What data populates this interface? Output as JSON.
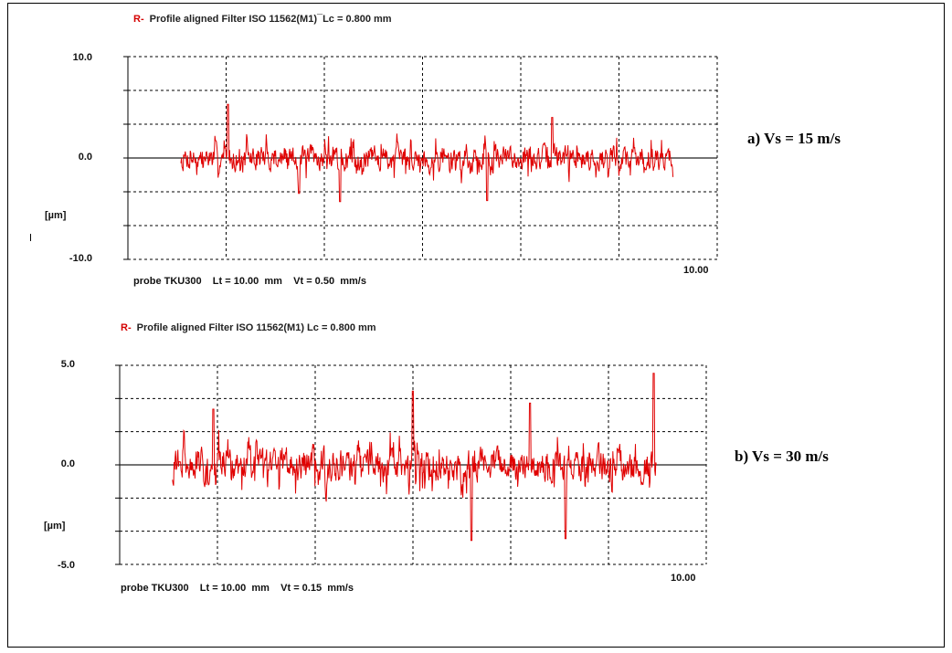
{
  "colors": {
    "profile": "#e00000",
    "grid": "#000000",
    "label_prefix": "#d40000"
  },
  "chart_data": [
    {
      "type": "line",
      "title_prefix": "R-",
      "title": "Profile aligned Filter ISO 11562(M1)¯Lc = 0.800 mm",
      "ylabel": "[µm]",
      "y_ticks": [
        "10.0",
        "0.0",
        "-10.0"
      ],
      "ylim": [
        -10,
        10
      ],
      "x_end_label": "10.00",
      "xlim": [
        0,
        10
      ],
      "grid": true,
      "footer": "probe TKU300    Lt = 10.00  mm    Vt = 0.50  mm/s",
      "annotation": "a) Vs = 15 m/s",
      "series": [
        {
          "data_start": 0.9,
          "data_end": 9.25,
          "seed": 7,
          "noise_amplitude": 1.3,
          "extremes": [
            [
              1.7,
              5.3
            ],
            [
              3.6,
              -4.3
            ],
            [
              6.1,
              -4.2
            ],
            [
              7.2,
              4.0
            ],
            [
              2.9,
              -3.5
            ]
          ]
        }
      ]
    },
    {
      "type": "line",
      "title_prefix": "R-",
      "title": "Profile aligned Filter ISO 11562(M1) Lc = 0.800 mm",
      "ylabel": "[µm]",
      "y_ticks": [
        "5.0",
        "0.0",
        "-5.0"
      ],
      "ylim": [
        -5,
        5
      ],
      "x_end_label": "10.00",
      "xlim": [
        0,
        10
      ],
      "grid": true,
      "footer": "probe TKU300    Lt = 10.00  mm    Vt = 0.15  mm/s",
      "annotation": "b) Vs = 30 m/s",
      "series": [
        {
          "data_start": 0.9,
          "data_end": 9.15,
          "seed": 31,
          "noise_amplitude": 0.9,
          "extremes": [
            [
              9.1,
              4.6
            ],
            [
              5.0,
              3.7
            ],
            [
              7.0,
              3.1
            ],
            [
              6.0,
              -3.8
            ],
            [
              7.6,
              -3.7
            ],
            [
              1.6,
              2.8
            ]
          ]
        }
      ]
    }
  ]
}
